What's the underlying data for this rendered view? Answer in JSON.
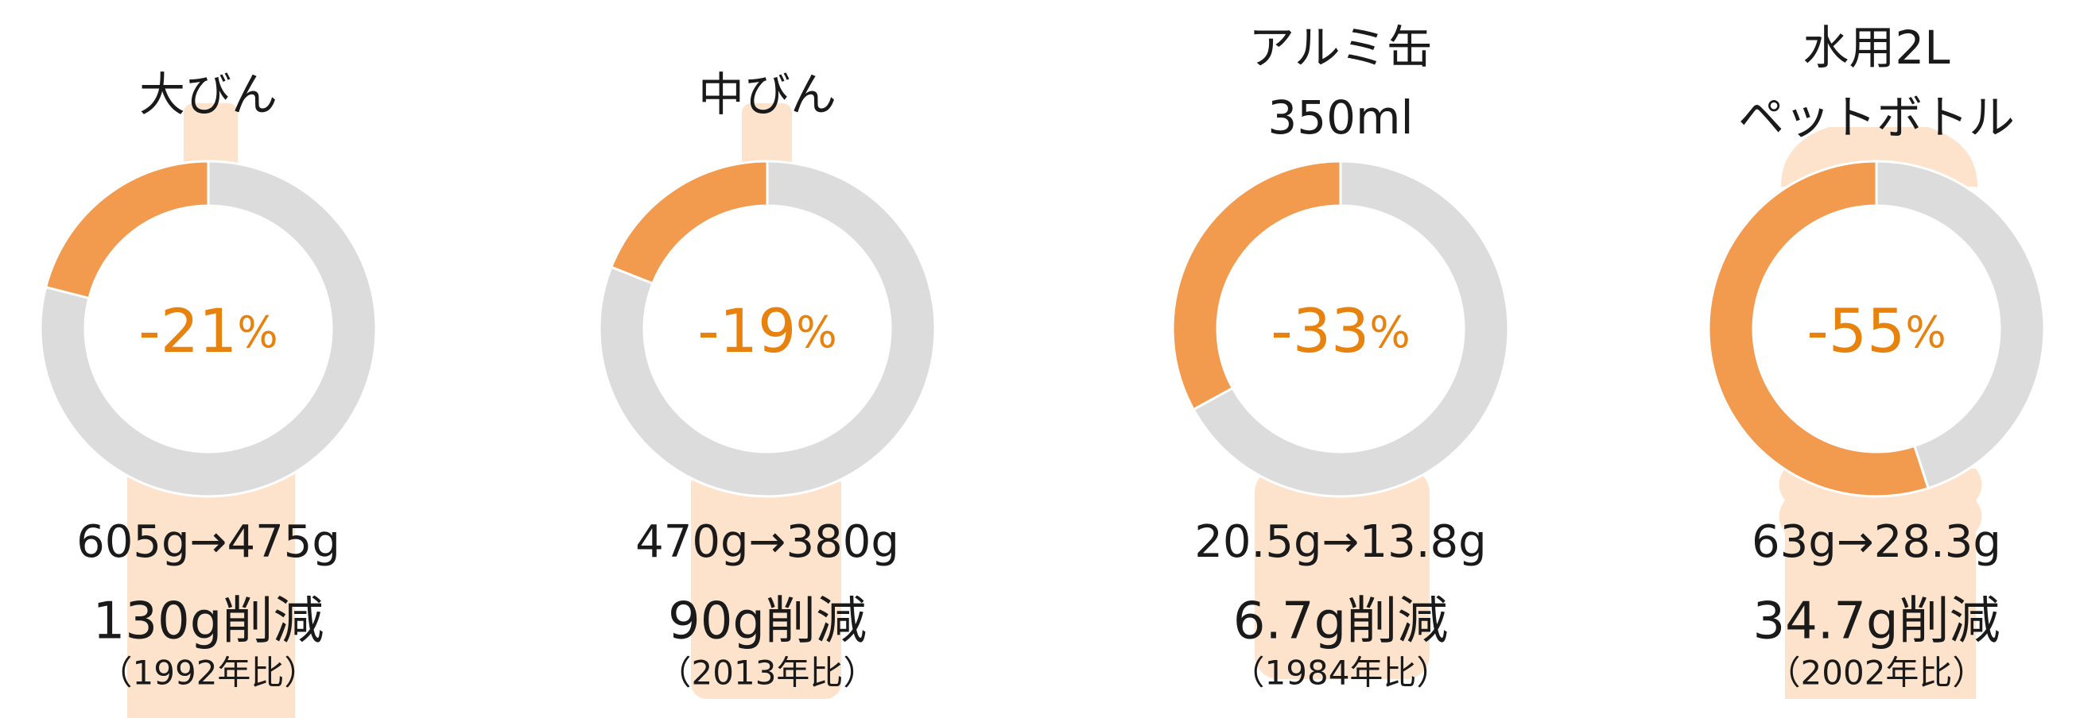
{
  "chart_data": [
    {
      "type": "donut",
      "title_lines": [
        "大びん"
      ],
      "values": [
        21,
        79
      ],
      "colors": [
        "#f29a4e",
        "#dcdcdc"
      ],
      "center_value": -21,
      "center_unit": "%",
      "weights": "605g→475g",
      "reduction": "130g削減",
      "note": "（1992年比）"
    },
    {
      "type": "donut",
      "title_lines": [
        "中びん"
      ],
      "values": [
        19,
        81
      ],
      "colors": [
        "#f29a4e",
        "#dcdcdc"
      ],
      "center_value": -19,
      "center_unit": "%",
      "weights": "470g→380g",
      "reduction": "90g削減",
      "note": "（2013年比）"
    },
    {
      "type": "donut",
      "title_lines": [
        "アルミ缶",
        "350ml"
      ],
      "values": [
        33,
        67
      ],
      "colors": [
        "#f29a4e",
        "#dcdcdc"
      ],
      "center_value": -33,
      "center_unit": "%",
      "weights": "20.5g→13.8g",
      "reduction": "6.7g削減",
      "note": "（1984年比）"
    },
    {
      "type": "donut",
      "title_lines": [
        "水用2L",
        "ペットボトル"
      ],
      "values": [
        55,
        45
      ],
      "colors": [
        "#f29a4e",
        "#dcdcdc"
      ],
      "center_value": -55,
      "center_unit": "%",
      "weights": "63g→28.3g",
      "reduction": "34.7g削減",
      "note": "（2002年比）"
    }
  ]
}
